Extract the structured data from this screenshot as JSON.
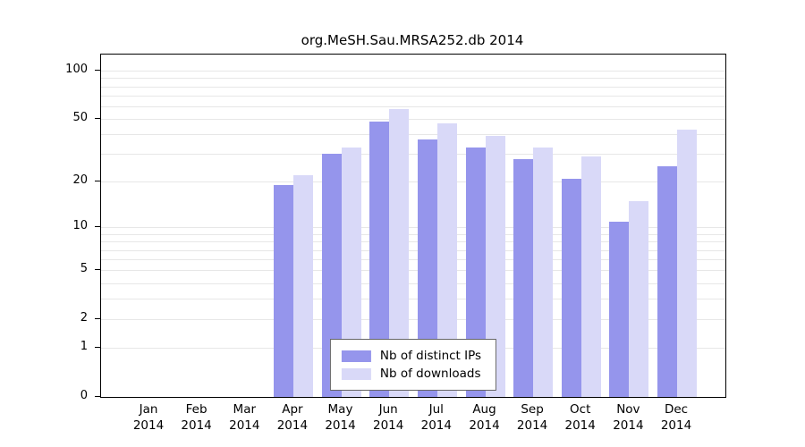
{
  "chart_data": {
    "type": "bar",
    "title": "org.MeSH.Sau.MRSA252.db 2014",
    "year": "2014",
    "categories": [
      "Jan",
      "Feb",
      "Mar",
      "Apr",
      "May",
      "Jun",
      "Jul",
      "Aug",
      "Sep",
      "Oct",
      "Nov",
      "Dec"
    ],
    "series": [
      {
        "name": "Nb of distinct IPs",
        "color": "#9595ec",
        "values": [
          0,
          0,
          0,
          19,
          30,
          48,
          37,
          33,
          28,
          21,
          11,
          25
        ]
      },
      {
        "name": "Nb of downloads",
        "color": "#d9d9f8",
        "values": [
          0,
          0,
          0,
          22,
          33,
          58,
          47,
          39,
          33,
          29,
          15,
          43
        ]
      }
    ],
    "yscale": "log1p",
    "ylim": [
      0,
      100
    ],
    "yticks": [
      0,
      1,
      2,
      5,
      10,
      20,
      50,
      100
    ],
    "grid_values": [
      1,
      2,
      3,
      4,
      5,
      6,
      7,
      8,
      9,
      10,
      20,
      30,
      40,
      50,
      60,
      70,
      80,
      90,
      100
    ],
    "grid": true,
    "legend_position": "bottom-center",
    "colors": {
      "grid": "#e7e7e7",
      "axis": "#000000",
      "background": "#ffffff"
    }
  }
}
